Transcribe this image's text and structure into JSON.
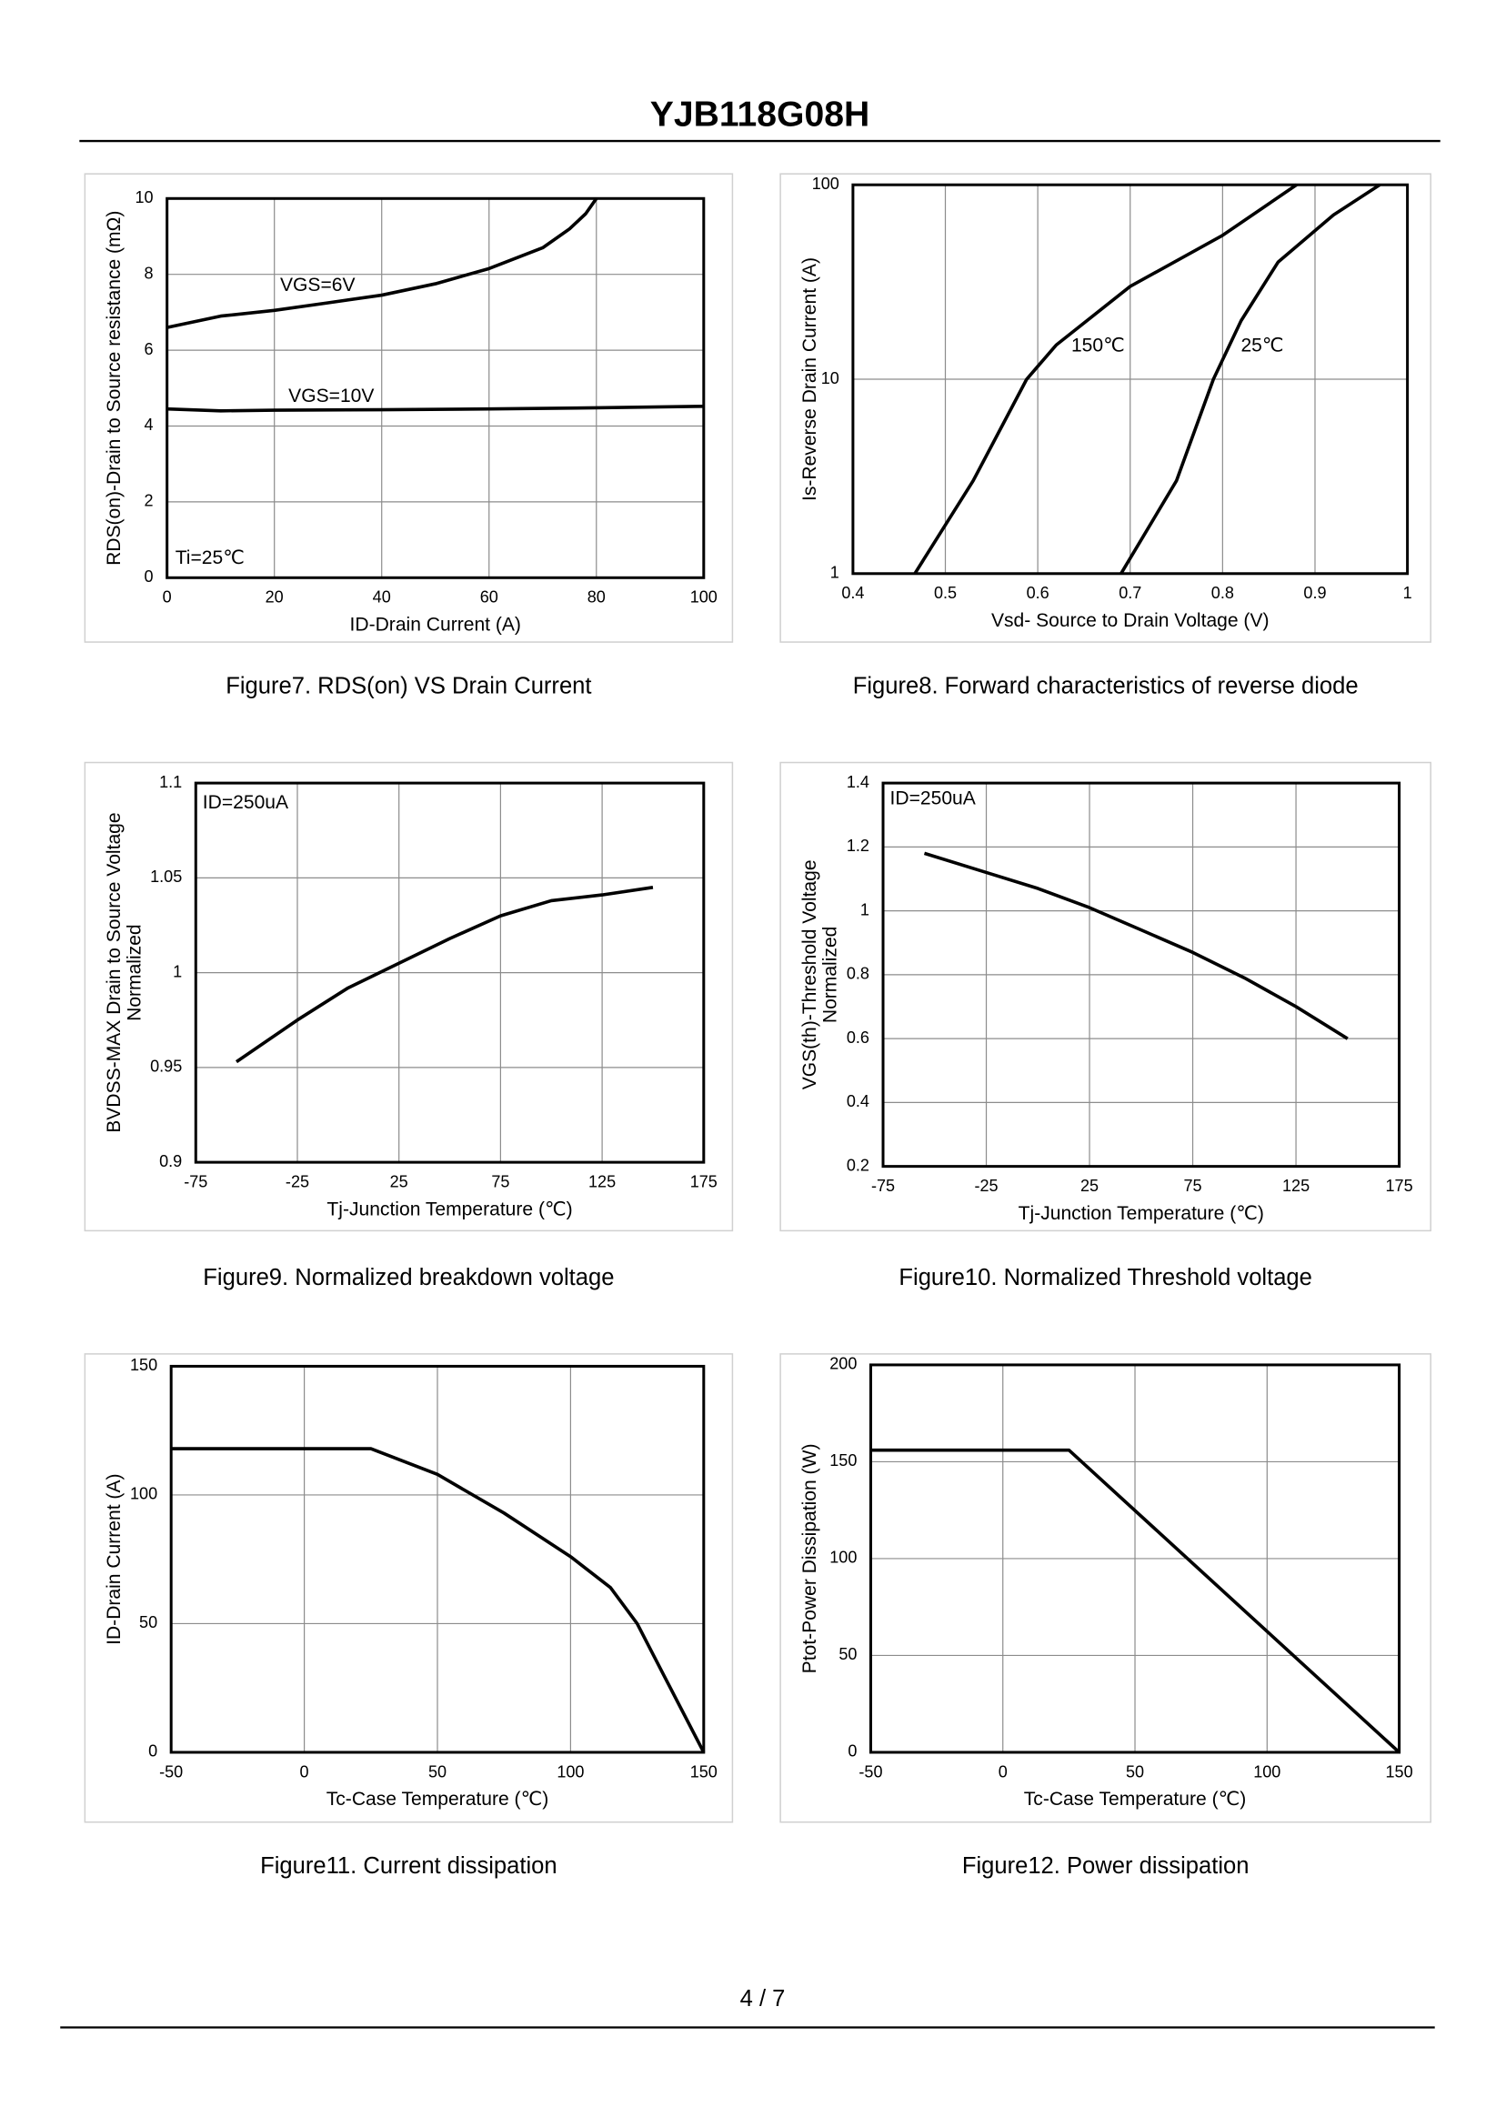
{
  "header": {
    "title": "YJB118G08H"
  },
  "footer": {
    "page": "4 / 7"
  },
  "chart_data": [
    {
      "type": "line",
      "caption": "Figure7. RDS(on) VS Drain Current",
      "x_label": "ID-Drain Current (A)",
      "y_label": [
        "RDS(on)-Drain to Source resistance (mΩ)"
      ],
      "xlim": [
        0,
        100
      ],
      "xticks": [
        0,
        20,
        40,
        60,
        80,
        100
      ],
      "ylim": [
        0,
        10
      ],
      "yticks": [
        0,
        2,
        4,
        6,
        8,
        10
      ],
      "grid": true,
      "color": "#000000",
      "annotations": [
        "Ti=25℃"
      ],
      "series": [
        {
          "name": "VGS=6V",
          "x": [
            0,
            10,
            20,
            30,
            40,
            50,
            60,
            70,
            75,
            78,
            80
          ],
          "values": [
            6.6,
            6.9,
            7.05,
            7.25,
            7.45,
            7.75,
            8.15,
            8.7,
            9.2,
            9.6,
            10
          ]
        },
        {
          "name": "VGS=10V",
          "x": [
            0,
            10,
            20,
            40,
            60,
            80,
            100
          ],
          "values": [
            4.45,
            4.4,
            4.42,
            4.43,
            4.45,
            4.48,
            4.52
          ]
        }
      ]
    },
    {
      "type": "line",
      "caption": "Figure8. Forward characteristics of reverse diode",
      "x_label": "Vsd- Source to Drain Voltage (V)",
      "y_label": [
        "Is-Reverse Drain Current (A)"
      ],
      "xlim": [
        0.4,
        1
      ],
      "xticks": [
        0.4,
        0.5,
        0.6,
        0.7,
        0.8,
        0.9,
        1
      ],
      "ylim": [
        1,
        100
      ],
      "yticks": [
        1,
        10,
        100
      ],
      "log_y": true,
      "grid": true,
      "color": "#000000",
      "annotations": [],
      "series": [
        {
          "name": "150℃",
          "x": [
            0.467,
            0.53,
            0.588,
            0.62,
            0.7,
            0.8,
            0.88
          ],
          "values": [
            1,
            3,
            10,
            15,
            30,
            55,
            100
          ]
        },
        {
          "name": "25℃",
          "x": [
            0.69,
            0.75,
            0.79,
            0.82,
            0.86,
            0.92,
            0.97
          ],
          "values": [
            1,
            3,
            10,
            20,
            40,
            70,
            100
          ]
        }
      ]
    },
    {
      "type": "line",
      "caption": "Figure9. Normalized breakdown voltage",
      "x_label": "Tj-Junction  Temperature (℃)",
      "y_label": [
        "BVDSS-MAX Drain to Source Voltage",
        "Normalized"
      ],
      "xlim": [
        -75,
        175
      ],
      "xticks": [
        -75,
        -25,
        25,
        75,
        125,
        175
      ],
      "ylim": [
        0.9,
        1.1
      ],
      "yticks": [
        0.9,
        0.95,
        1,
        1.05,
        1.1
      ],
      "grid": true,
      "color": "#000000",
      "annotations": [
        "ID=250uA"
      ],
      "series": [
        {
          "x": [
            -55,
            -25,
            0,
            25,
            50,
            75,
            100,
            125,
            150
          ],
          "values": [
            0.953,
            0.975,
            0.992,
            1.005,
            1.018,
            1.03,
            1.038,
            1.041,
            1.045
          ]
        }
      ]
    },
    {
      "type": "line",
      "caption": "Figure10. Normalized Threshold voltage",
      "x_label": "Tj-Junction  Temperature (℃)",
      "y_label": [
        "VGS(th)-Threshold  Voltage",
        "Normalized"
      ],
      "xlim": [
        -75,
        175
      ],
      "xticks": [
        -75,
        -25,
        25,
        75,
        125,
        175
      ],
      "ylim": [
        0.2,
        1.4
      ],
      "yticks": [
        0.2,
        0.4,
        0.6,
        0.8,
        1,
        1.2,
        1.4
      ],
      "grid": true,
      "color": "#000000",
      "annotations": [
        "ID=250uA"
      ],
      "series": [
        {
          "x": [
            -55,
            -25,
            0,
            25,
            50,
            75,
            100,
            125,
            150
          ],
          "values": [
            1.18,
            1.12,
            1.07,
            1.01,
            0.94,
            0.87,
            0.79,
            0.7,
            0.6
          ]
        }
      ]
    },
    {
      "type": "line",
      "caption": "Figure11. Current dissipation",
      "x_label": "Tc-Case Temperature (℃)",
      "y_label": [
        "ID-Drain Current (A)"
      ],
      "xlim": [
        -50,
        150
      ],
      "xticks": [
        -50,
        0,
        50,
        100,
        150
      ],
      "ylim": [
        0,
        150
      ],
      "yticks": [
        0,
        50,
        100,
        150
      ],
      "grid": true,
      "color": "#000000",
      "annotations": [],
      "series": [
        {
          "x": [
            -50,
            25,
            50,
            75,
            100,
            115,
            125,
            135,
            150
          ],
          "values": [
            118,
            118,
            108,
            93,
            76,
            64,
            50,
            30,
            0
          ]
        }
      ]
    },
    {
      "type": "line",
      "caption": "Figure12. Power dissipation",
      "x_label": "Tc-Case Temperature (℃)",
      "y_label": [
        "Ptot-Power Dissipation (W)"
      ],
      "xlim": [
        -50,
        150
      ],
      "xticks": [
        -50,
        0,
        50,
        100,
        150
      ],
      "ylim": [
        0,
        200
      ],
      "yticks": [
        0,
        50,
        100,
        150,
        200
      ],
      "grid": true,
      "color": "#000000",
      "annotations": [],
      "series": [
        {
          "x": [
            -50,
            25,
            150
          ],
          "values": [
            156,
            156,
            0
          ]
        }
      ]
    }
  ]
}
